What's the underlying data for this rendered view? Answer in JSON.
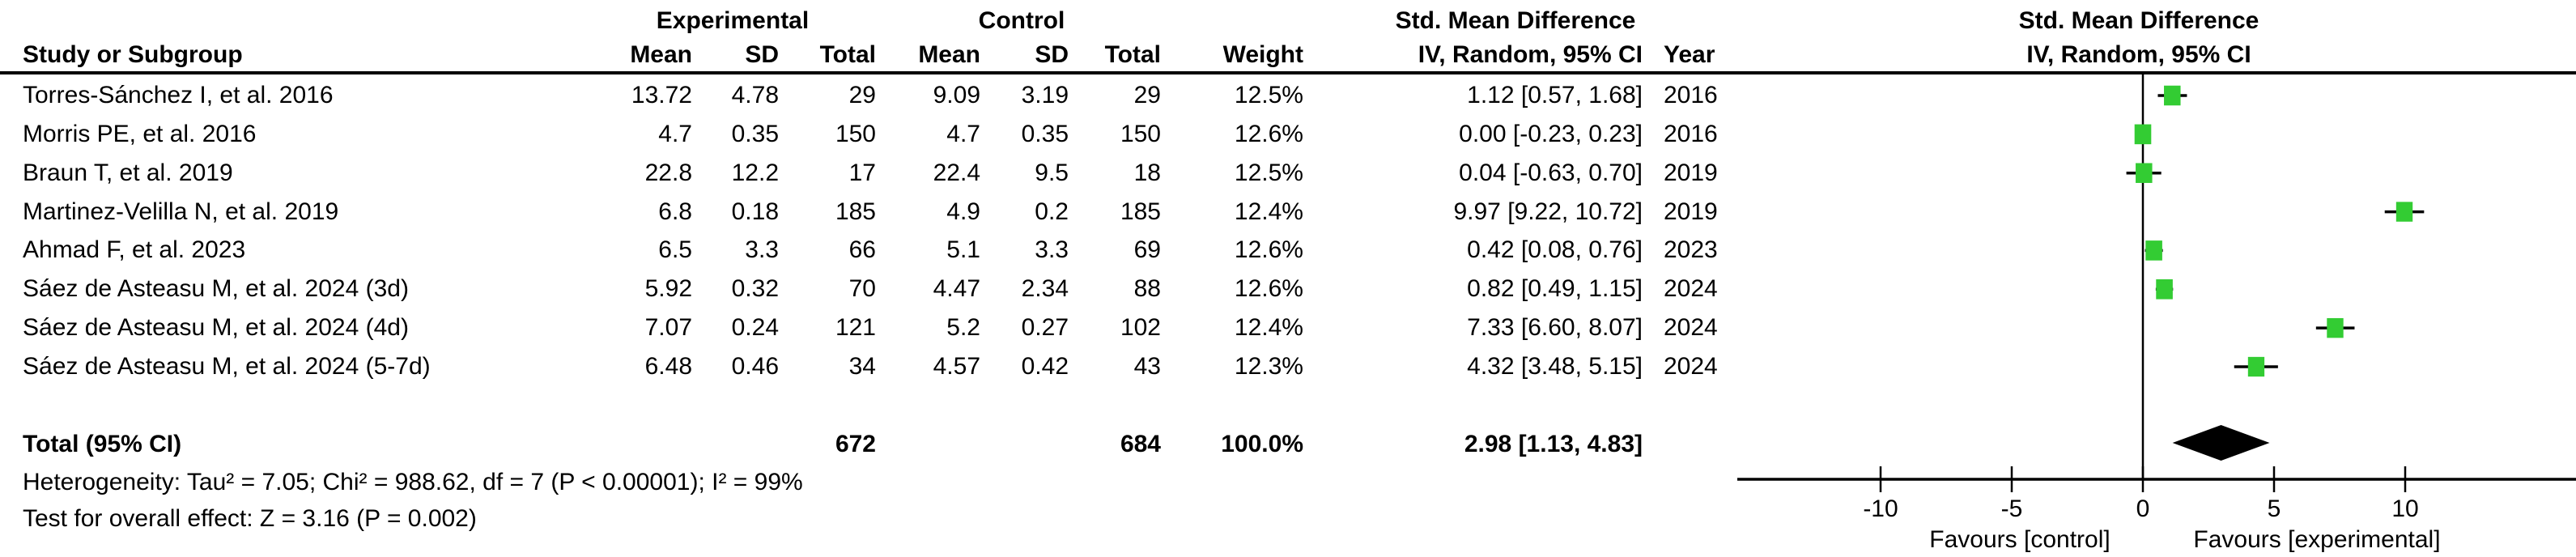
{
  "table": {
    "group_headers": {
      "experimental": "Experimental",
      "control": "Control",
      "smd": "Std. Mean Difference"
    },
    "col_headers": {
      "study": "Study or Subgroup",
      "mean": "Mean",
      "sd": "SD",
      "total": "Total",
      "weight": "Weight",
      "ci": "IV, Random, 95% CI",
      "year": "Year"
    },
    "rows": [
      {
        "study": "Torres-Sánchez I, et al. 2016",
        "exp_mean": "13.72",
        "exp_sd": "4.78",
        "exp_total": "29",
        "ctl_mean": "9.09",
        "ctl_sd": "3.19",
        "ctl_total": "29",
        "weight": "12.5%",
        "ci": "1.12 [0.57, 1.68]",
        "year": "2016"
      },
      {
        "study": "Morris PE, et al. 2016",
        "exp_mean": "4.7",
        "exp_sd": "0.35",
        "exp_total": "150",
        "ctl_mean": "4.7",
        "ctl_sd": "0.35",
        "ctl_total": "150",
        "weight": "12.6%",
        "ci": "0.00 [-0.23, 0.23]",
        "year": "2016"
      },
      {
        "study": "Braun T, et al. 2019",
        "exp_mean": "22.8",
        "exp_sd": "12.2",
        "exp_total": "17",
        "ctl_mean": "22.4",
        "ctl_sd": "9.5",
        "ctl_total": "18",
        "weight": "12.5%",
        "ci": "0.04 [-0.63, 0.70]",
        "year": "2019"
      },
      {
        "study": "Martinez-Velilla N, et al. 2019",
        "exp_mean": "6.8",
        "exp_sd": "0.18",
        "exp_total": "185",
        "ctl_mean": "4.9",
        "ctl_sd": "0.2",
        "ctl_total": "185",
        "weight": "12.4%",
        "ci": "9.97 [9.22, 10.72]",
        "year": "2019"
      },
      {
        "study": "Ahmad F, et al. 2023",
        "exp_mean": "6.5",
        "exp_sd": "3.3",
        "exp_total": "66",
        "ctl_mean": "5.1",
        "ctl_sd": "3.3",
        "ctl_total": "69",
        "weight": "12.6%",
        "ci": "0.42 [0.08, 0.76]",
        "year": "2023"
      },
      {
        "study": "Sáez de Asteasu M, et al. 2024 (3d)",
        "exp_mean": "5.92",
        "exp_sd": "0.32",
        "exp_total": "70",
        "ctl_mean": "4.47",
        "ctl_sd": "2.34",
        "ctl_total": "88",
        "weight": "12.6%",
        "ci": "0.82 [0.49, 1.15]",
        "year": "2024"
      },
      {
        "study": "Sáez de Asteasu M, et al. 2024 (4d)",
        "exp_mean": "7.07",
        "exp_sd": "0.24",
        "exp_total": "121",
        "ctl_mean": "5.2",
        "ctl_sd": "0.27",
        "ctl_total": "102",
        "weight": "12.4%",
        "ci": "7.33 [6.60, 8.07]",
        "year": "2024"
      },
      {
        "study": "Sáez de Asteasu M, et al. 2024 (5-7d)",
        "exp_mean": "6.48",
        "exp_sd": "0.46",
        "exp_total": "34",
        "ctl_mean": "4.57",
        "ctl_sd": "0.42",
        "ctl_total": "43",
        "weight": "12.3%",
        "ci": "4.32 [3.48, 5.15]",
        "year": "2024"
      }
    ],
    "total_row": {
      "label": "Total (95% CI)",
      "exp_total": "672",
      "ctl_total": "684",
      "weight": "100.0%",
      "ci": "2.98 [1.13, 4.83]"
    },
    "heterogeneity": "Heterogeneity: Tau² = 7.05; Chi² = 988.62, df = 7 (P < 0.00001); I² = 99%",
    "overall_effect": "Test for overall effect: Z = 3.16 (P = 0.002)"
  },
  "chart_data": {
    "type": "forest",
    "title": "Std. Mean Difference",
    "subtitle": "IV, Random, 95% CI",
    "x_ticks": [
      -10,
      -5,
      0,
      5,
      10
    ],
    "xlim": [
      -15.5,
      16.5
    ],
    "favours_left": "Favours [control]",
    "favours_right": "Favours [experimental]",
    "marker_color": "#33CC33",
    "line_color": "#000000",
    "points": [
      {
        "study": "Torres-Sánchez I, et al. 2016",
        "est": 1.12,
        "lo": 0.57,
        "hi": 1.68,
        "weight": 12.5
      },
      {
        "study": "Morris PE, et al. 2016",
        "est": 0.0,
        "lo": -0.23,
        "hi": 0.23,
        "weight": 12.6
      },
      {
        "study": "Braun T, et al. 2019",
        "est": 0.04,
        "lo": -0.63,
        "hi": 0.7,
        "weight": 12.5
      },
      {
        "study": "Martinez-Velilla N, et al. 2019",
        "est": 9.97,
        "lo": 9.22,
        "hi": 10.72,
        "weight": 12.4
      },
      {
        "study": "Ahmad F, et al. 2023",
        "est": 0.42,
        "lo": 0.08,
        "hi": 0.76,
        "weight": 12.6
      },
      {
        "study": "Sáez de Asteasu M, et al. 2024 (3d)",
        "est": 0.82,
        "lo": 0.49,
        "hi": 1.15,
        "weight": 12.6
      },
      {
        "study": "Sáez de Asteasu M, et al. 2024 (4d)",
        "est": 7.33,
        "lo": 6.6,
        "hi": 8.07,
        "weight": 12.4
      },
      {
        "study": "Sáez de Asteasu M, et al. 2024 (5-7d)",
        "est": 4.32,
        "lo": 3.48,
        "hi": 5.15,
        "weight": 12.3
      }
    ],
    "diamond": {
      "label": "Total (95% CI)",
      "est": 2.98,
      "lo": 1.13,
      "hi": 4.83
    }
  }
}
